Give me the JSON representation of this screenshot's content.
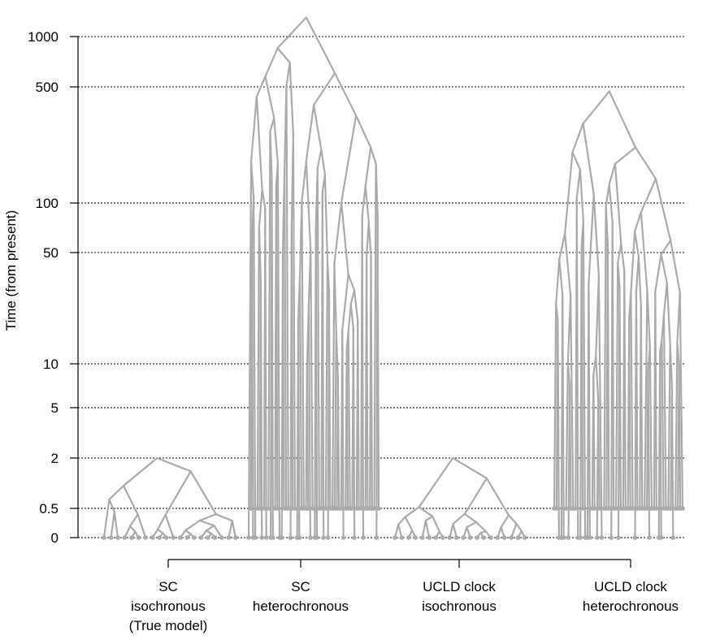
{
  "chart_data": {
    "type": "tree",
    "ylabel": "Time (from present)",
    "y_scale": "transformed (compressed near 0, log-like above)",
    "y_ticks": [
      0,
      0.5,
      2,
      5,
      10,
      50,
      100,
      500,
      1000
    ],
    "y_tick_labels": [
      "0",
      "0.5",
      "2",
      "5",
      "10",
      "50",
      "100",
      "500",
      "1000"
    ],
    "grid": "horizontal dashed lines at each y tick",
    "groups": [
      {
        "lines": [
          "SC",
          "isochronous",
          "(True model)"
        ],
        "root_age": 2,
        "sampling": "all tips at time 0"
      },
      {
        "lines": [
          "SC",
          "heterochronous"
        ],
        "root_age": 1300,
        "sampling": "tips at time 0 and 0.5"
      },
      {
        "lines": [
          "UCLD clock",
          "isochronous"
        ],
        "root_age": 2,
        "sampling": "all tips at time 0"
      },
      {
        "lines": [
          "UCLD clock",
          "heterochronous"
        ],
        "root_age": 470,
        "sampling": "tips at time 0 and 0.5"
      }
    ],
    "branch_color": "#aaaaaa"
  }
}
